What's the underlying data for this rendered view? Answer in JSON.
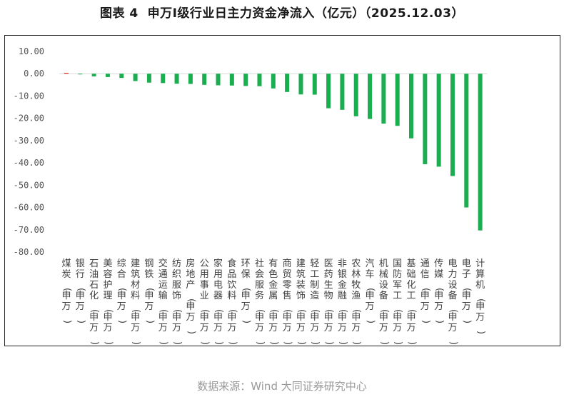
{
  "figure": {
    "title": "图表 4  申万Ⅰ级行业日主力资金净流入（亿元）（2025.12.03）",
    "source": "数据来源：Wind 大同证券研究中心"
  },
  "colors": {
    "positive": "#e8392f",
    "negative": "#1aae50",
    "axis_text": "#555555",
    "zero_line": "#d9d9d9"
  },
  "chart_data": {
    "type": "bar",
    "title": "申万Ⅰ级行业日主力资金净流入（亿元）（2025.12.03）",
    "xlabel": "",
    "ylabel": "",
    "ylim": [
      -80,
      10
    ],
    "yticks": [
      "10.00",
      "0.00",
      "-10.00",
      "-20.00",
      "-30.00",
      "-40.00",
      "-50.00",
      "-60.00",
      "-70.00",
      "-80.00"
    ],
    "ytick_values": [
      10,
      0,
      -10,
      -20,
      -30,
      -40,
      -50,
      -60,
      -70,
      -80
    ],
    "grid": false,
    "legend": "none",
    "categories": [
      "煤炭(申万)",
      "银行(申万)",
      "石油石化(申万)",
      "美容护理(申万)",
      "综合(申万)",
      "建筑材料(申万)",
      "钢铁(申万)",
      "交通运输(申万)",
      "纺织服饰(申万)",
      "房地产(申万)",
      "公用事业(申万)",
      "家用电器(申万)",
      "食品饮料(申万)",
      "环保(申万)",
      "社会服务(申万)",
      "有色金属(申万)",
      "商贸零售(申万)",
      "建筑装饰(申万)",
      "轻工制造(申万)",
      "医药生物(申万)",
      "非银金融(申万)",
      "农林牧渔(申万)",
      "汽车(申万)",
      "机械设备(申万)",
      "国防军工(申万)",
      "基础化工(申万)",
      "通信(申万)",
      "传媒(申万)",
      "电力设备(申万)",
      "电子(申万)",
      "计算机(申万)"
    ],
    "values": [
      0.4,
      -0.3,
      -1.2,
      -1.5,
      -1.9,
      -3.3,
      -4.0,
      -4.2,
      -4.5,
      -4.6,
      -5.0,
      -5.2,
      -5.3,
      -5.5,
      -5.6,
      -6.6,
      -8.2,
      -9.3,
      -9.4,
      -15.5,
      -16.2,
      -19.1,
      -20.3,
      -22.4,
      -23.4,
      -29.0,
      -40.6,
      -41.7,
      -45.9,
      -60.0,
      -70.3
    ]
  }
}
